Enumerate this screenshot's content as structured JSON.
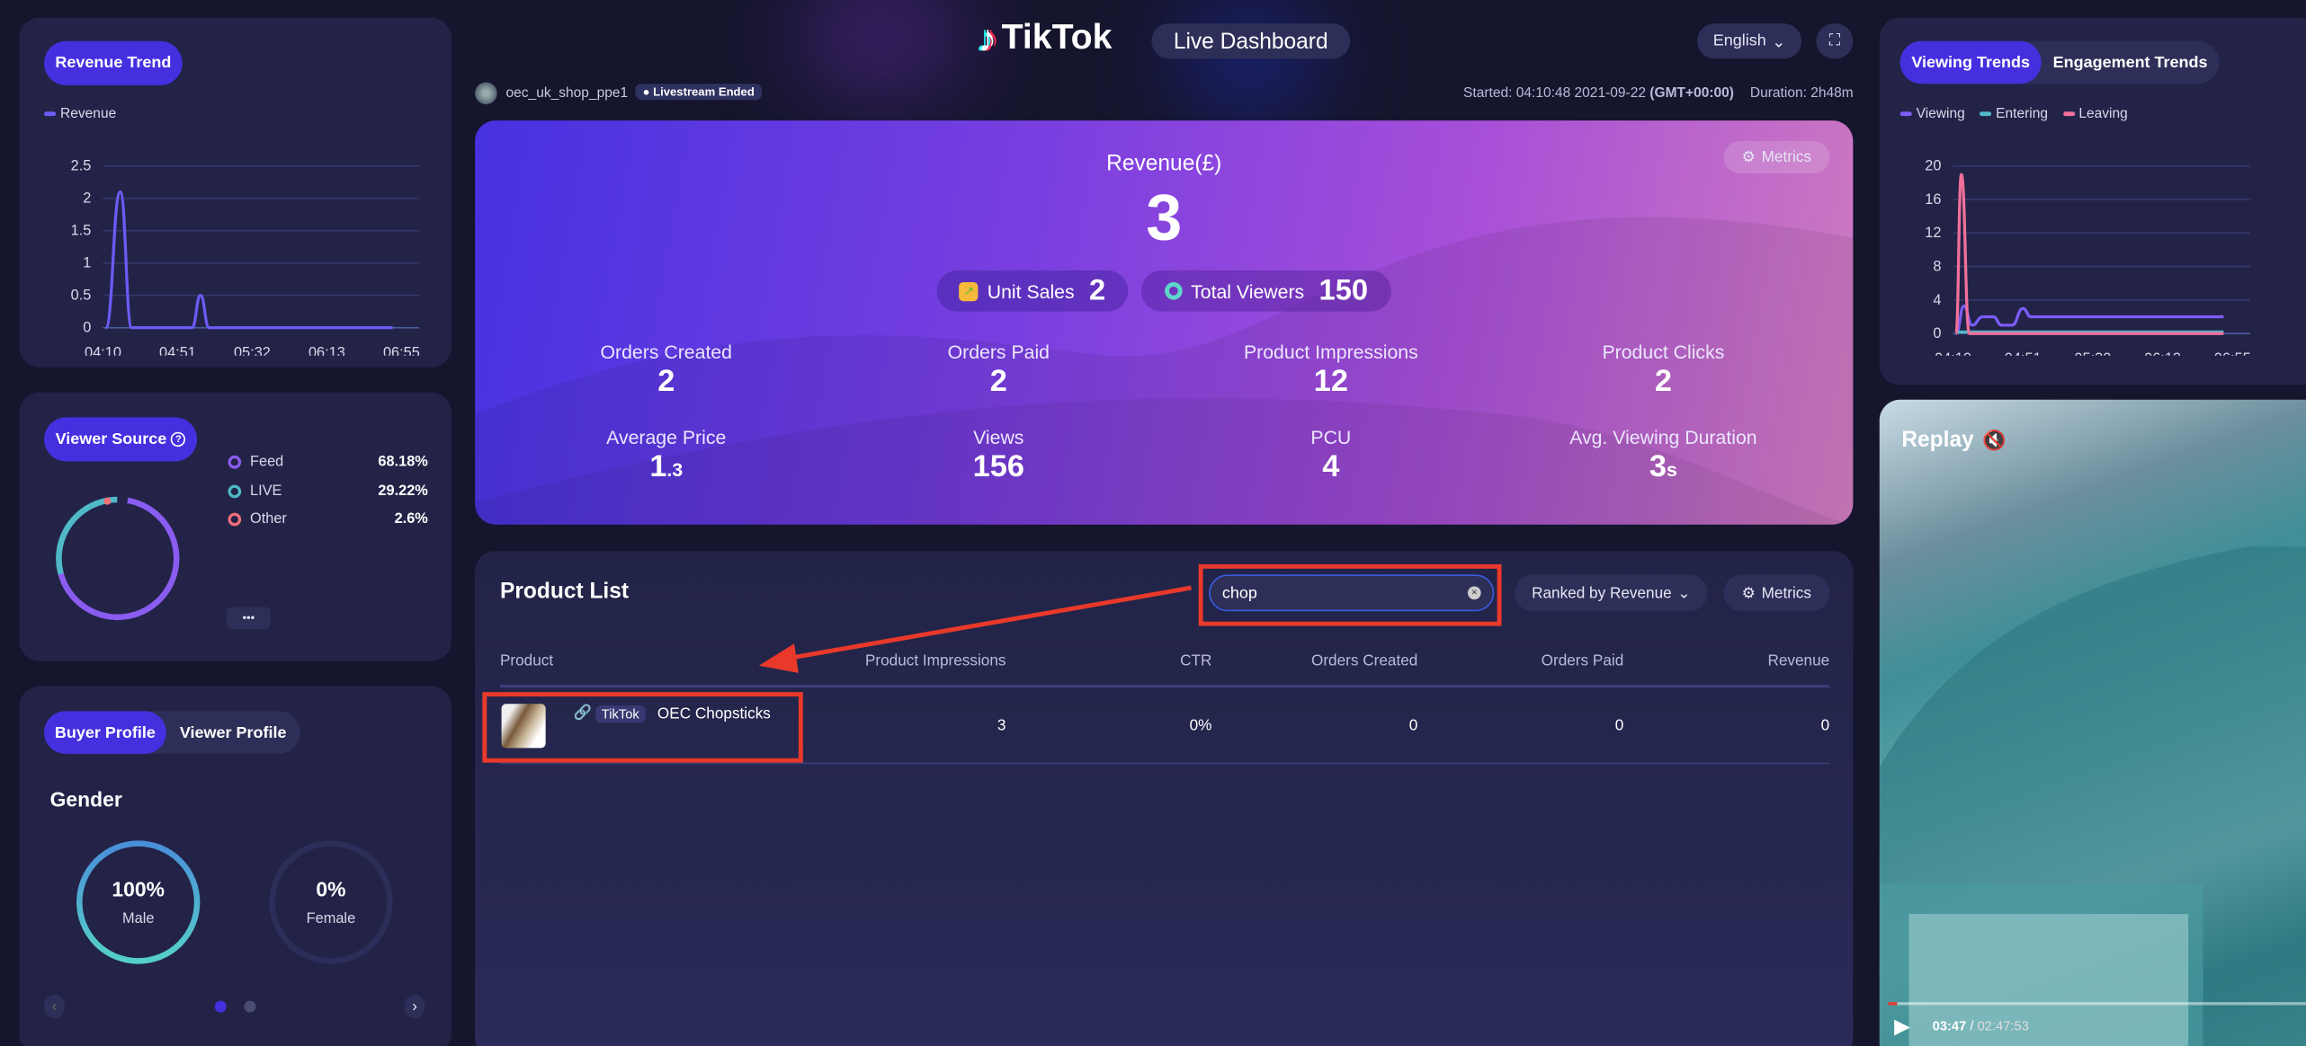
{
  "header": {
    "brand": "TikTok",
    "title": "Live Dashboard",
    "language": "English",
    "account": "oec_uk_shop_ppe1",
    "status_badge": "Livestream Ended",
    "started_label": "Started: 04:10:48 2021-09-22",
    "timezone": "(GMT+00:00)",
    "duration": "Duration: 2h48m"
  },
  "revenue_trend": {
    "tab": "Revenue Trend",
    "legend": "Revenue",
    "y_ticks": [
      "2.5",
      "2",
      "1.5",
      "1",
      "0.5",
      "0"
    ],
    "x_ticks": [
      "04:10",
      "04:51",
      "05:32",
      "06:13",
      "06:55"
    ],
    "series": [
      {
        "name": "Revenue",
        "color": "#6b5cf5",
        "points": [
          [
            0,
            0
          ],
          [
            0.05,
            2.1
          ],
          [
            0.09,
            0
          ],
          [
            0.3,
            0
          ],
          [
            0.33,
            0.5
          ],
          [
            0.36,
            0
          ],
          [
            1,
            0
          ]
        ]
      }
    ]
  },
  "viewer_source": {
    "tab": "Viewer Source",
    "items": [
      {
        "label": "Feed",
        "value": "68.18%",
        "color": "#8a5cf0"
      },
      {
        "label": "LIVE",
        "value": "29.22%",
        "color": "#4fb9c8"
      },
      {
        "label": "Other",
        "value": "2.6%",
        "color": "#f0707a"
      }
    ],
    "more": "•••"
  },
  "profile": {
    "tabs": [
      "Buyer Profile",
      "Viewer Profile"
    ],
    "active_tab": "Buyer Profile",
    "section": "Gender",
    "gender": [
      {
        "value": "100%",
        "label": "Male",
        "fraction": 1.0
      },
      {
        "value": "0%",
        "label": "Female",
        "fraction": 0.0
      }
    ],
    "page": 1,
    "pages": 2
  },
  "hero": {
    "revenue_label": "Revenue(£)",
    "revenue": "3",
    "metrics_button": "Metrics",
    "unit_sales_label": "Unit Sales",
    "unit_sales": "2",
    "total_viewers_label": "Total Viewers",
    "total_viewers": "150",
    "metrics": [
      {
        "label": "Orders Created",
        "value": "2"
      },
      {
        "label": "Orders Paid",
        "value": "2"
      },
      {
        "label": "Product Impressions",
        "value": "12"
      },
      {
        "label": "Product Clicks",
        "value": "2"
      },
      {
        "label": "Average Price",
        "value": "1",
        "suffix": ".3"
      },
      {
        "label": "Views",
        "value": "156"
      },
      {
        "label": "PCU",
        "value": "4"
      },
      {
        "label": "Avg. Viewing Duration",
        "value": "3",
        "suffix": "s"
      }
    ]
  },
  "product_list": {
    "title": "Product List",
    "search_value": "chop",
    "sort": "Ranked by Revenue",
    "metrics_button": "Metrics",
    "columns": [
      "Product",
      "Product Impressions",
      "CTR",
      "Orders Created",
      "Orders Paid",
      "Revenue"
    ],
    "rows": [
      {
        "badge": "TikTok",
        "name": "OEC Chopsticks",
        "impressions": "3",
        "ctr": "0%",
        "orders_created": "0",
        "orders_paid": "0",
        "revenue": "0"
      }
    ]
  },
  "viewing_trends": {
    "tabs": [
      "Viewing Trends",
      "Engagement Trends"
    ],
    "active_tab": "Viewing Trends",
    "y_ticks": [
      "20",
      "16",
      "12",
      "8",
      "4",
      "0"
    ],
    "x_ticks": [
      "04:10",
      "04:51",
      "05:32",
      "06:13",
      "06:55"
    ],
    "series": [
      {
        "name": "Viewing",
        "color": "#7b5cf5",
        "points": [
          [
            0,
            0
          ],
          [
            0.03,
            3.3
          ],
          [
            0.06,
            1
          ],
          [
            0.1,
            2
          ],
          [
            0.14,
            2
          ],
          [
            0.17,
            1
          ],
          [
            0.21,
            1
          ],
          [
            0.25,
            3
          ],
          [
            0.28,
            2
          ],
          [
            1,
            2
          ]
        ]
      },
      {
        "name": "Entering",
        "color": "#4fb9c8",
        "points": [
          [
            0,
            0.2
          ],
          [
            1,
            0.2
          ]
        ]
      },
      {
        "name": "Leaving",
        "color": "#f0709a",
        "points": [
          [
            0,
            0
          ],
          [
            0.02,
            19
          ],
          [
            0.05,
            0
          ],
          [
            1,
            0
          ]
        ]
      }
    ]
  },
  "replay": {
    "title": "Replay",
    "current_time": "03:47",
    "total_time": "02:47:53",
    "progress": 0.022
  },
  "colors": {
    "accent": "#4530e0",
    "background": "#15152d",
    "card": "#222347",
    "annotation": "#e8392a"
  }
}
